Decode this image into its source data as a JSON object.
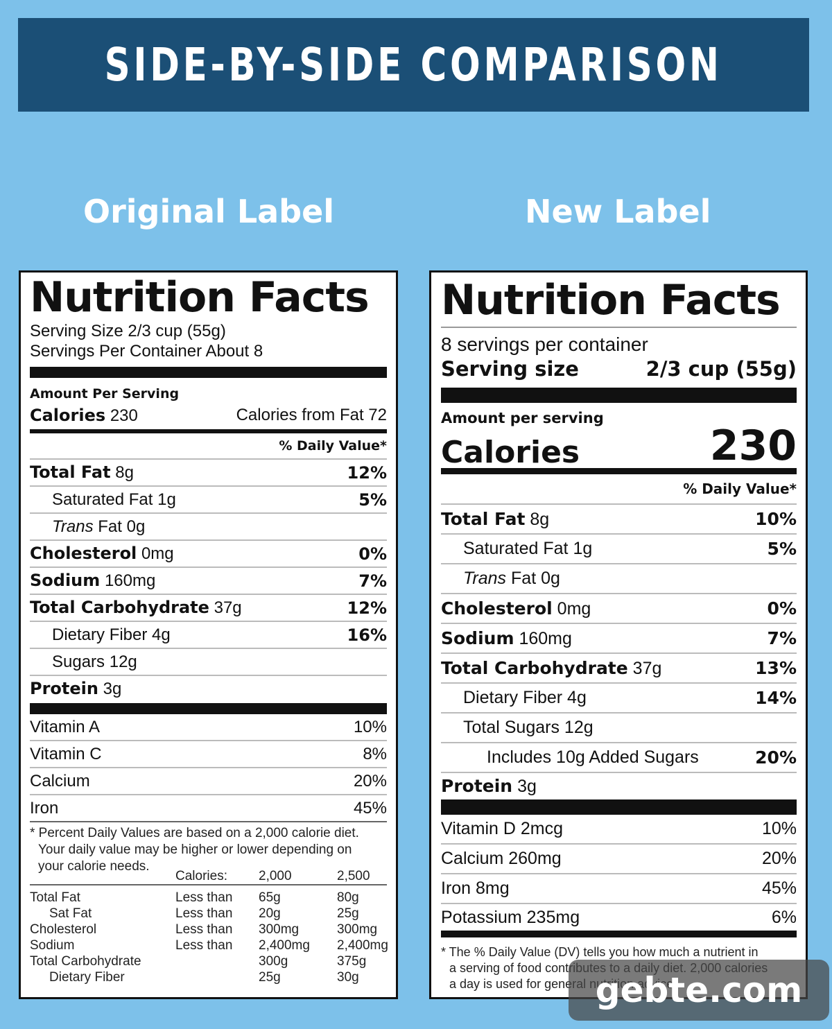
{
  "banner": {
    "title": "SIDE-BY-SIDE COMPARISON"
  },
  "columns": {
    "left_title": "Original Label",
    "right_title": "New Label"
  },
  "original": {
    "title": "Nutrition Facts",
    "serving_size": "Serving Size 2/3 cup (55g)",
    "servings_per_container": "Servings Per Container About 8",
    "amount_per_serving": "Amount Per Serving",
    "calories_label": "Calories",
    "calories_value": "230",
    "calories_from_fat": "Calories from Fat 72",
    "daily_value_header": "% Daily Value*",
    "nutrients": [
      {
        "name": "Total Fat",
        "amount": "8g",
        "dv": "12%"
      },
      {
        "name": "Saturated Fat",
        "amount": "1g",
        "dv": "5%"
      },
      {
        "name": "Trans",
        "amount": "Fat 0g",
        "dv": ""
      },
      {
        "name": "Cholesterol",
        "amount": "0mg",
        "dv": "0%"
      },
      {
        "name": "Sodium",
        "amount": "160mg",
        "dv": "7%"
      },
      {
        "name": "Total Carbohydrate",
        "amount": "37g",
        "dv": "12%"
      },
      {
        "name": "Dietary Fiber",
        "amount": "4g",
        "dv": "16%"
      },
      {
        "name": "Sugars",
        "amount": "12g",
        "dv": ""
      },
      {
        "name": "Protein",
        "amount": "3g",
        "dv": ""
      }
    ],
    "vitamins": [
      {
        "name": "Vitamin A",
        "dv": "10%"
      },
      {
        "name": "Vitamin C",
        "dv": "8%"
      },
      {
        "name": "Calcium",
        "dv": "20%"
      },
      {
        "name": "Iron",
        "dv": "45%"
      }
    ],
    "footnote": [
      "* Percent Daily Values are based on a 2,000 calorie diet.",
      "Your daily value may be higher or lower depending on",
      "your calorie needs."
    ],
    "table_header": [
      "Calories:",
      "2,000",
      "2,500"
    ],
    "table_rows": [
      [
        "Total Fat",
        "Less than",
        "65g",
        "80g"
      ],
      [
        "Sat Fat",
        "Less than",
        "20g",
        "25g"
      ],
      [
        "Cholesterol",
        "Less than",
        "300mg",
        "300mg"
      ],
      [
        "Sodium",
        "Less than",
        "2,400mg",
        "2,400mg"
      ],
      [
        "Total Carbohydrate",
        "",
        "300g",
        "375g"
      ],
      [
        "Dietary Fiber",
        "",
        "25g",
        "30g"
      ]
    ]
  },
  "new": {
    "title": "Nutrition Facts",
    "servings_per_container": "8 servings per container",
    "serving_size_label": "Serving size",
    "serving_size_value": "2/3 cup (55g)",
    "amount_per_serving": "Amount per serving",
    "calories_label": "Calories",
    "calories_value": "230",
    "daily_value_header": "% Daily Value*",
    "nutrients": [
      {
        "name": "Total Fat",
        "amount": "8g",
        "dv": "10%"
      },
      {
        "name": "Saturated Fat",
        "amount": "1g",
        "dv": "5%"
      },
      {
        "name": "Trans",
        "amount": "Fat 0g",
        "dv": ""
      },
      {
        "name": "Cholesterol",
        "amount": "0mg",
        "dv": "0%"
      },
      {
        "name": "Sodium",
        "amount": "160mg",
        "dv": "7%"
      },
      {
        "name": "Total Carbohydrate",
        "amount": "37g",
        "dv": "13%"
      },
      {
        "name": "Dietary Fiber",
        "amount": "4g",
        "dv": "14%"
      },
      {
        "name": "Total Sugars",
        "amount": "12g",
        "dv": ""
      },
      {
        "name": "Includes 10g Added Sugars",
        "amount": "",
        "dv": "20%"
      },
      {
        "name": "Protein",
        "amount": "3g",
        "dv": ""
      }
    ],
    "vitamins": [
      {
        "name": "Vitamin D 2mcg",
        "dv": "10%"
      },
      {
        "name": "Calcium 260mg",
        "dv": "20%"
      },
      {
        "name": "Iron 8mg",
        "dv": "45%"
      },
      {
        "name": "Potassium 235mg",
        "dv": "6%"
      }
    ],
    "footnote": [
      "* The % Daily Value (DV) tells you how much a nutrient in",
      "a serving of food contributes to a daily diet. 2,000 calories",
      "a day is used for general nutrition advice."
    ]
  },
  "watermark": "gebte.com"
}
